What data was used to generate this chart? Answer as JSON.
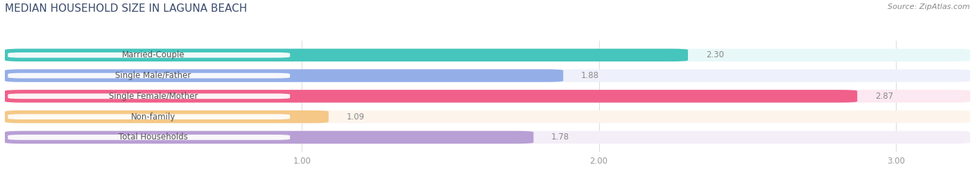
{
  "title": "MEDIAN HOUSEHOLD SIZE IN LAGUNA BEACH",
  "source": "Source: ZipAtlas.com",
  "categories": [
    "Married-Couple",
    "Single Male/Father",
    "Single Female/Mother",
    "Non-family",
    "Total Households"
  ],
  "values": [
    2.3,
    1.88,
    2.87,
    1.09,
    1.78
  ],
  "bar_colors": [
    "#45c5bc",
    "#94aee8",
    "#f0608a",
    "#f5c888",
    "#b89fd4"
  ],
  "bar_bg_colors": [
    "#e8f8f8",
    "#eef1fb",
    "#fce8f0",
    "#fdf5ec",
    "#f4eef8"
  ],
  "label_bg_color": "#ffffff",
  "xlim": [
    0.0,
    3.25
  ],
  "x_axis_min": 0.0,
  "xticks": [
    1.0,
    2.0,
    3.0
  ],
  "xtick_labels": [
    "1.00",
    "2.00",
    "3.00"
  ],
  "label_fontsize": 8.5,
  "value_fontsize": 8.5,
  "title_fontsize": 11,
  "source_fontsize": 8,
  "bar_height": 0.62,
  "background_color": "#ffffff",
  "grid_color": "#dddddd",
  "title_color": "#3a4a6b",
  "source_color": "#888888",
  "label_text_color": "#555555",
  "value_text_color": "#888888"
}
